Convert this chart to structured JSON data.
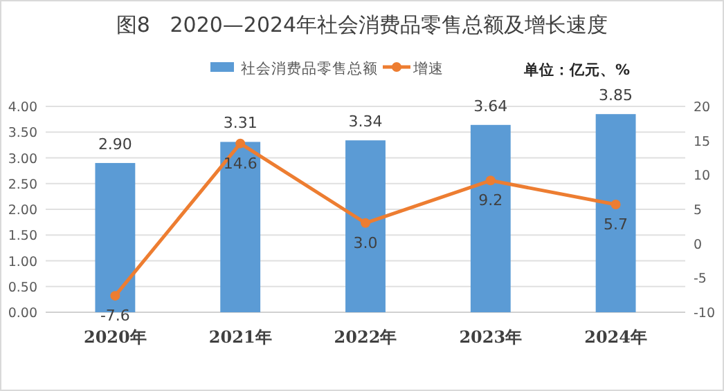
{
  "chart_data": {
    "type": "bar",
    "title": "图8   2020—2024年社会消费品零售总额及增长速度",
    "annotations": [
      "单位：亿元、%"
    ],
    "categories": [
      "2020年",
      "2021年",
      "2022年",
      "2023年",
      "2024年"
    ],
    "series": [
      {
        "name": "社会消费品零售总额",
        "color": "#5b9bd5",
        "values": [
          2.9,
          3.31,
          3.34,
          3.64,
          3.85
        ],
        "value_labels": [
          "2.90",
          "3.31",
          "3.34",
          "3.64",
          "3.85"
        ]
      },
      {
        "name": "增速",
        "type": "line",
        "axis": "y2",
        "color": "#ed7d31",
        "values": [
          -7.6,
          14.6,
          3.0,
          9.2,
          5.7
        ],
        "value_labels": [
          "-7.6",
          "14.6",
          "3.0",
          "9.2",
          "5.7"
        ]
      }
    ],
    "ylim": [
      0,
      4
    ],
    "yticks": [
      {
        "value": 0,
        "label": "0.00"
      },
      {
        "value": 0.5,
        "label": "0.50"
      },
      {
        "value": 1,
        "label": "1.00"
      },
      {
        "value": 1.5,
        "label": "1.50"
      },
      {
        "value": 2,
        "label": "2.00"
      },
      {
        "value": 2.5,
        "label": "2.50"
      },
      {
        "value": 3,
        "label": "3.00"
      },
      {
        "value": 3.5,
        "label": "3.50"
      },
      {
        "value": 4,
        "label": "4.00"
      }
    ],
    "y2lim": [
      -10,
      20
    ],
    "y2ticks": [
      -10,
      -5,
      0,
      5,
      10,
      15,
      20
    ],
    "grid": "y",
    "legend": "top",
    "marker": "circle"
  }
}
